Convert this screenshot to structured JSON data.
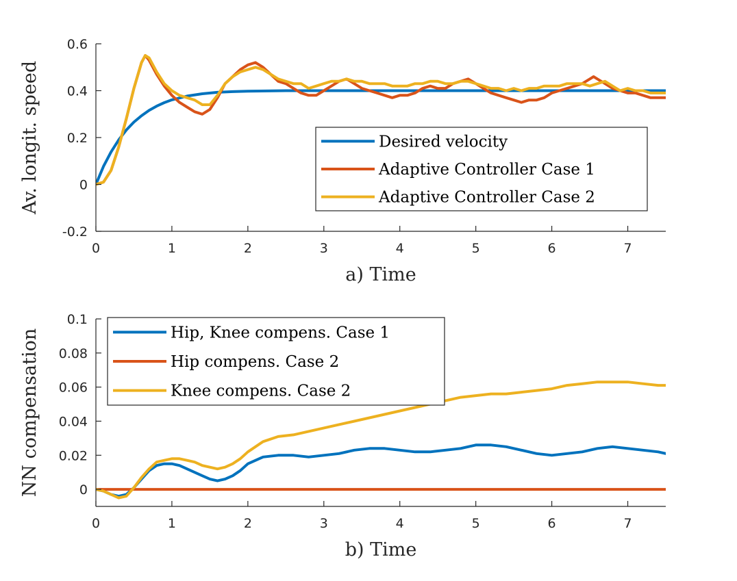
{
  "chart_data": [
    {
      "type": "line",
      "xlabel": "a) Time",
      "ylabel": "Av. longit. speed",
      "xlim": [
        0,
        7.5
      ],
      "ylim": [
        -0.2,
        0.6
      ],
      "xticks": [
        0,
        1,
        2,
        3,
        4,
        5,
        6,
        7
      ],
      "yticks": [
        -0.2,
        0,
        0.2,
        0.4,
        0.6
      ],
      "ytick_labels": [
        "-0.2",
        "0",
        "0.2",
        "0.4",
        "0.6"
      ],
      "legend_position": "lower-right",
      "series": [
        {
          "name": "Desired velocity",
          "color": "#0072BD",
          "x": [
            0,
            0.1,
            0.2,
            0.3,
            0.4,
            0.5,
            0.6,
            0.7,
            0.8,
            0.9,
            1.0,
            1.2,
            1.4,
            1.6,
            1.8,
            2.0,
            2.5,
            3,
            4,
            5,
            6,
            7,
            7.5
          ],
          "y": [
            0,
            0.077,
            0.139,
            0.19,
            0.232,
            0.266,
            0.293,
            0.316,
            0.334,
            0.349,
            0.361,
            0.377,
            0.387,
            0.393,
            0.396,
            0.398,
            0.4,
            0.4,
            0.4,
            0.4,
            0.4,
            0.4,
            0.4
          ]
        },
        {
          "name": "Adaptive Controller Case 1",
          "color": "#D95319",
          "x": [
            0,
            0.1,
            0.2,
            0.3,
            0.4,
            0.5,
            0.6,
            0.65,
            0.7,
            0.8,
            0.9,
            1.0,
            1.1,
            1.2,
            1.3,
            1.4,
            1.5,
            1.6,
            1.7,
            1.8,
            1.9,
            2.0,
            2.1,
            2.2,
            2.3,
            2.4,
            2.5,
            2.6,
            2.7,
            2.8,
            2.9,
            3.0,
            3.1,
            3.2,
            3.3,
            3.4,
            3.5,
            3.6,
            3.7,
            3.8,
            3.9,
            4.0,
            4.1,
            4.2,
            4.3,
            4.4,
            4.5,
            4.6,
            4.7,
            4.8,
            4.9,
            5.0,
            5.1,
            5.2,
            5.3,
            5.4,
            5.5,
            5.6,
            5.7,
            5.8,
            5.9,
            6.0,
            6.1,
            6.2,
            6.3,
            6.4,
            6.5,
            6.55,
            6.6,
            6.7,
            6.8,
            6.9,
            7.0,
            7.1,
            7.2,
            7.3,
            7.4,
            7.5
          ],
          "y": [
            0,
            0.01,
            0.06,
            0.16,
            0.28,
            0.41,
            0.52,
            0.55,
            0.53,
            0.47,
            0.42,
            0.38,
            0.35,
            0.33,
            0.31,
            0.3,
            0.32,
            0.37,
            0.43,
            0.46,
            0.49,
            0.51,
            0.52,
            0.5,
            0.47,
            0.44,
            0.43,
            0.41,
            0.39,
            0.38,
            0.38,
            0.4,
            0.42,
            0.44,
            0.45,
            0.43,
            0.41,
            0.4,
            0.39,
            0.38,
            0.37,
            0.38,
            0.38,
            0.39,
            0.41,
            0.42,
            0.41,
            0.41,
            0.43,
            0.44,
            0.45,
            0.43,
            0.41,
            0.39,
            0.38,
            0.37,
            0.36,
            0.35,
            0.36,
            0.36,
            0.37,
            0.39,
            0.4,
            0.41,
            0.42,
            0.43,
            0.45,
            0.46,
            0.45,
            0.43,
            0.41,
            0.4,
            0.39,
            0.39,
            0.38,
            0.37,
            0.37,
            0.37
          ]
        },
        {
          "name": "Adaptive Controller Case 2",
          "color": "#EDB120",
          "x": [
            0,
            0.1,
            0.2,
            0.3,
            0.4,
            0.5,
            0.6,
            0.65,
            0.7,
            0.8,
            0.9,
            1.0,
            1.1,
            1.2,
            1.3,
            1.4,
            1.5,
            1.6,
            1.7,
            1.8,
            1.9,
            2.0,
            2.1,
            2.2,
            2.3,
            2.4,
            2.5,
            2.6,
            2.7,
            2.8,
            2.9,
            3.0,
            3.1,
            3.2,
            3.3,
            3.4,
            3.5,
            3.6,
            3.7,
            3.8,
            3.9,
            4.0,
            4.1,
            4.2,
            4.3,
            4.4,
            4.5,
            4.6,
            4.7,
            4.8,
            4.9,
            5.0,
            5.1,
            5.2,
            5.3,
            5.4,
            5.5,
            5.6,
            5.7,
            5.8,
            5.9,
            6.0,
            6.1,
            6.2,
            6.3,
            6.4,
            6.5,
            6.6,
            6.7,
            6.8,
            6.9,
            7.0,
            7.1,
            7.2,
            7.3,
            7.4,
            7.5
          ],
          "y": [
            0,
            0.01,
            0.06,
            0.16,
            0.28,
            0.41,
            0.52,
            0.55,
            0.54,
            0.48,
            0.43,
            0.4,
            0.38,
            0.37,
            0.36,
            0.34,
            0.34,
            0.38,
            0.43,
            0.46,
            0.48,
            0.49,
            0.5,
            0.49,
            0.47,
            0.45,
            0.44,
            0.43,
            0.43,
            0.41,
            0.42,
            0.43,
            0.44,
            0.44,
            0.45,
            0.44,
            0.44,
            0.43,
            0.43,
            0.43,
            0.42,
            0.42,
            0.42,
            0.43,
            0.43,
            0.44,
            0.44,
            0.43,
            0.43,
            0.44,
            0.44,
            0.43,
            0.42,
            0.41,
            0.41,
            0.4,
            0.41,
            0.4,
            0.41,
            0.41,
            0.42,
            0.42,
            0.42,
            0.43,
            0.43,
            0.43,
            0.42,
            0.43,
            0.44,
            0.42,
            0.4,
            0.41,
            0.4,
            0.4,
            0.39,
            0.39,
            0.39
          ]
        }
      ]
    },
    {
      "type": "line",
      "xlabel": "b) Time",
      "ylabel": "NN compensation",
      "xlim": [
        0,
        7.5
      ],
      "ylim": [
        -0.01,
        0.1
      ],
      "xticks": [
        0,
        1,
        2,
        3,
        4,
        5,
        6,
        7
      ],
      "yticks": [
        0,
        0.02,
        0.04,
        0.06,
        0.08,
        0.1
      ],
      "ytick_labels": [
        "0",
        "0.02",
        "0.04",
        "0.06",
        "0.08",
        "0.1"
      ],
      "legend_position": "top-left",
      "series": [
        {
          "name": "Hip, Knee compens. Case 1",
          "color": "#0072BD",
          "x": [
            0,
            0.1,
            0.2,
            0.3,
            0.4,
            0.5,
            0.6,
            0.7,
            0.8,
            0.9,
            1.0,
            1.1,
            1.2,
            1.3,
            1.4,
            1.5,
            1.6,
            1.7,
            1.8,
            1.9,
            2.0,
            2.2,
            2.4,
            2.6,
            2.8,
            3.0,
            3.2,
            3.4,
            3.6,
            3.8,
            4.0,
            4.2,
            4.4,
            4.6,
            4.8,
            5.0,
            5.2,
            5.4,
            5.6,
            5.8,
            6.0,
            6.2,
            6.4,
            6.6,
            6.8,
            7.0,
            7.2,
            7.4,
            7.5
          ],
          "y": [
            0,
            -0.001,
            -0.003,
            -0.004,
            -0.003,
            0.001,
            0.006,
            0.011,
            0.014,
            0.015,
            0.015,
            0.014,
            0.012,
            0.01,
            0.008,
            0.006,
            0.005,
            0.006,
            0.008,
            0.011,
            0.015,
            0.019,
            0.02,
            0.02,
            0.019,
            0.02,
            0.021,
            0.023,
            0.024,
            0.024,
            0.023,
            0.022,
            0.022,
            0.023,
            0.024,
            0.026,
            0.026,
            0.025,
            0.023,
            0.021,
            0.02,
            0.021,
            0.022,
            0.024,
            0.025,
            0.024,
            0.023,
            0.022,
            0.021
          ]
        },
        {
          "name": "Hip compens. Case 2",
          "color": "#D95319",
          "x": [
            0,
            7.5
          ],
          "y": [
            0,
            0
          ]
        },
        {
          "name": "Knee compens. Case 2",
          "color": "#EDB120",
          "x": [
            0,
            0.1,
            0.2,
            0.3,
            0.4,
            0.5,
            0.6,
            0.7,
            0.8,
            0.9,
            1.0,
            1.1,
            1.2,
            1.3,
            1.4,
            1.5,
            1.6,
            1.7,
            1.8,
            1.9,
            2.0,
            2.2,
            2.4,
            2.6,
            2.8,
            3.0,
            3.2,
            3.4,
            3.6,
            3.8,
            4.0,
            4.2,
            4.4,
            4.6,
            4.8,
            5.0,
            5.2,
            5.4,
            5.6,
            5.8,
            6.0,
            6.2,
            6.4,
            6.6,
            6.8,
            7.0,
            7.2,
            7.4,
            7.5
          ],
          "y": [
            0,
            -0.001,
            -0.003,
            -0.005,
            -0.004,
            0.001,
            0.007,
            0.012,
            0.016,
            0.017,
            0.018,
            0.018,
            0.017,
            0.016,
            0.014,
            0.013,
            0.012,
            0.013,
            0.015,
            0.018,
            0.022,
            0.028,
            0.031,
            0.032,
            0.034,
            0.036,
            0.038,
            0.04,
            0.042,
            0.044,
            0.046,
            0.048,
            0.05,
            0.052,
            0.054,
            0.055,
            0.056,
            0.056,
            0.057,
            0.058,
            0.059,
            0.061,
            0.062,
            0.063,
            0.063,
            0.063,
            0.062,
            0.061,
            0.061
          ]
        }
      ]
    }
  ]
}
